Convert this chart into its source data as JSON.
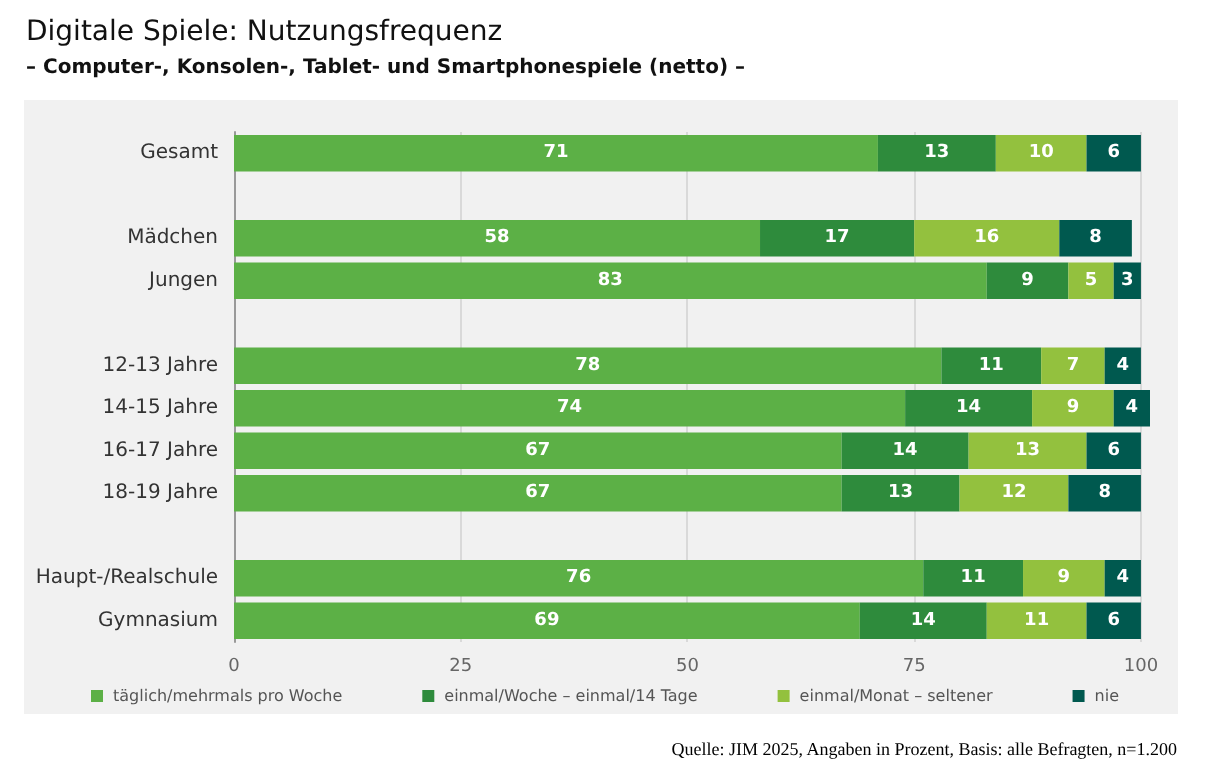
{
  "chart_data": {
    "type": "bar",
    "orientation": "horizontal",
    "stacked": true,
    "title": "Digitale Spiele: Nutzungsfrequenz",
    "subtitle": "– Computer-, Konsolen-, Tablet- und Smartphonespiele (netto) –",
    "categories": [
      "Gesamt",
      null,
      "Mädchen",
      "Jungen",
      null,
      "12-13 Jahre",
      "14-15 Jahre",
      "16-17 Jahre",
      "18-19 Jahre",
      null,
      "Haupt-/Realschule",
      "Gymnasium"
    ],
    "series": [
      {
        "name": "täglich/mehrmals pro Woche",
        "color": "#5cb046",
        "values": [
          71,
          null,
          58,
          83,
          null,
          78,
          74,
          67,
          67,
          null,
          76,
          69
        ]
      },
      {
        "name": "einmal/Woche – einmal/14 Tage",
        "color": "#2e8b3c",
        "values": [
          13,
          null,
          17,
          9,
          null,
          11,
          14,
          14,
          13,
          null,
          11,
          14
        ]
      },
      {
        "name": "einmal/Monat – seltener",
        "color": "#93c13e",
        "values": [
          10,
          null,
          16,
          5,
          null,
          7,
          9,
          13,
          12,
          null,
          9,
          11
        ]
      },
      {
        "name": "nie",
        "color": "#00594f",
        "values": [
          6,
          null,
          8,
          3,
          null,
          4,
          4,
          6,
          8,
          null,
          4,
          6
        ]
      }
    ],
    "xlim": [
      0,
      101
    ],
    "xticks": [
      0,
      25,
      50,
      75,
      100
    ],
    "grid": "x",
    "legend": "bottom",
    "data_labels": true,
    "annotations": [
      "Quelle: JIM 2025, Angaben in Prozent, Basis: alle Befragten, n=1.200"
    ]
  }
}
